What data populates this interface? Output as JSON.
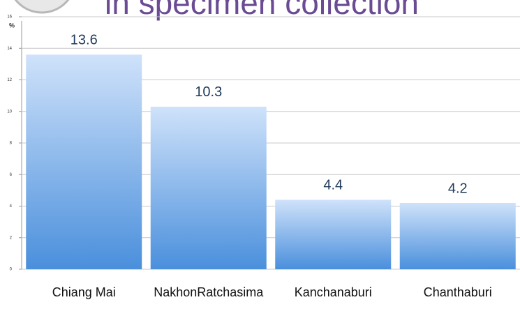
{
  "chart_data": {
    "type": "bar",
    "title": "in specimen collection",
    "y_label": "%",
    "categories": [
      "Chiang Mai",
      "NakhonRatchasima",
      "Kanchanaburi",
      "Chanthaburi"
    ],
    "values": [
      13.6,
      10.3,
      4.4,
      4.2
    ],
    "color": "#5b9be0",
    "ylim": [
      0,
      16
    ],
    "yticks": [
      0,
      2,
      4,
      6,
      8,
      10,
      12,
      14,
      16
    ],
    "grid": true
  }
}
